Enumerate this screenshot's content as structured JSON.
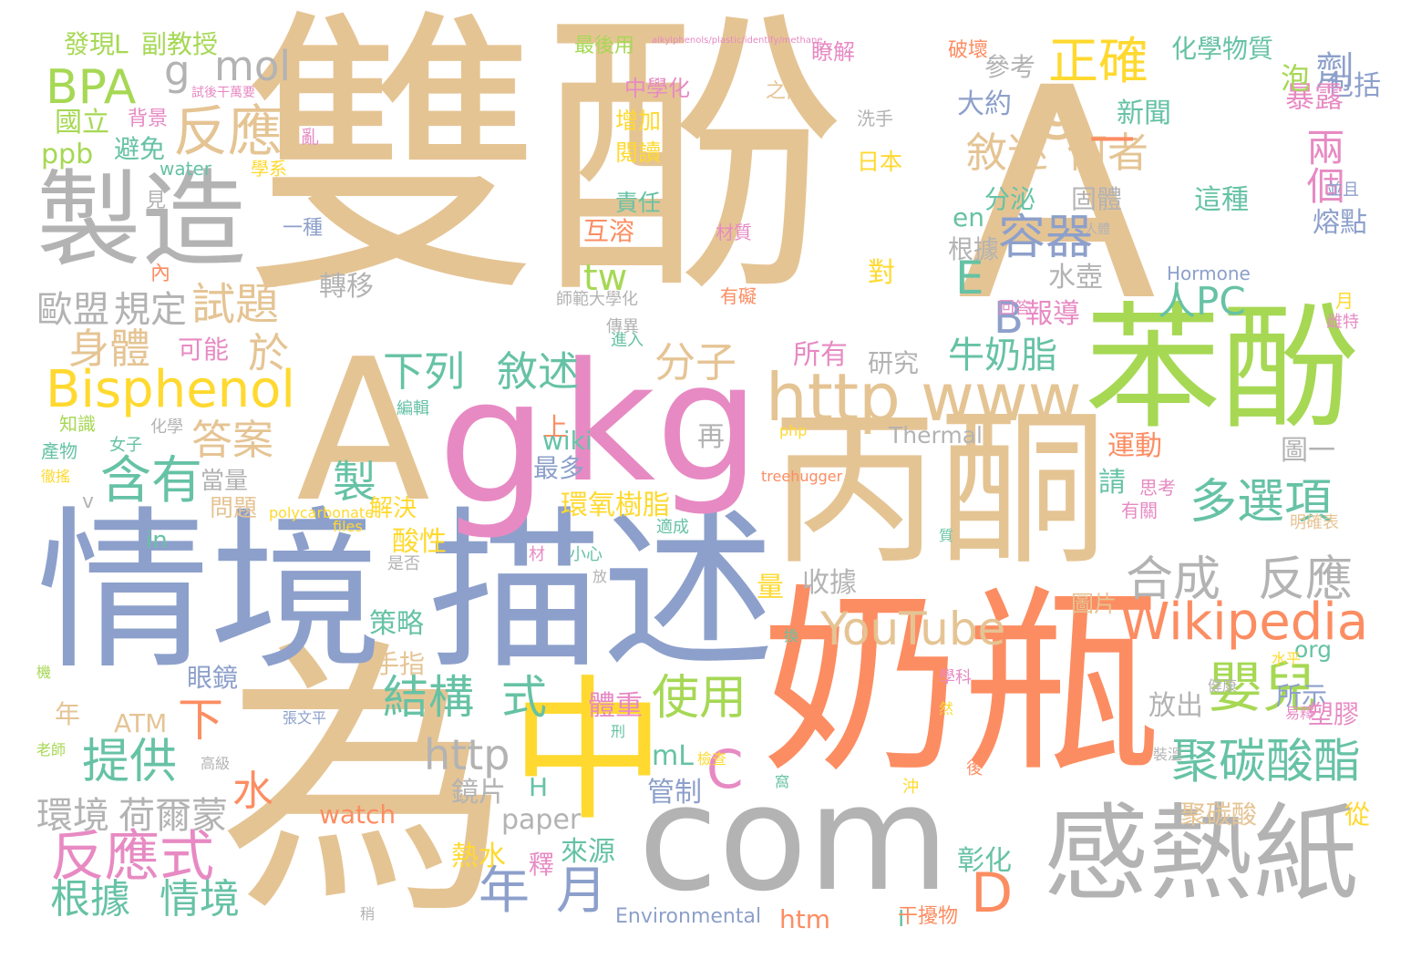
{
  "palette": {
    "tan": "#e5c494",
    "orange": "#fc8d62",
    "blue": "#8da0cb",
    "pink": "#e78ac3",
    "green": "#a6d854",
    "yellow": "#ffd92f",
    "teal": "#66c2a5",
    "gray": "#b3b3b3"
  },
  "words": [
    {
      "text": "雙酚",
      "color": "tan"
    },
    {
      "text": "A",
      "color": "tan"
    },
    {
      "text": "為",
      "color": "tan"
    },
    {
      "text": "奶瓶",
      "color": "orange"
    },
    {
      "text": "情境",
      "color": "blue"
    },
    {
      "text": "描述",
      "color": "blue"
    },
    {
      "text": "丙酮",
      "color": "tan"
    },
    {
      "text": "苯酚",
      "color": "green"
    },
    {
      "text": "A",
      "color": "tan"
    },
    {
      "text": "g",
      "color": "pink"
    },
    {
      "text": "kg",
      "color": "pink"
    },
    {
      "text": "中",
      "color": "yellow"
    },
    {
      "text": "com",
      "color": "gray"
    },
    {
      "text": "感熱紙",
      "color": "gray"
    },
    {
      "text": "製造",
      "color": "gray"
    },
    {
      "text": "http",
      "color": "tan"
    },
    {
      "text": "www",
      "color": "tan"
    },
    {
      "text": "Bisphenol",
      "color": "yellow"
    },
    {
      "text": "Wikipedia",
      "color": "orange"
    },
    {
      "text": "YouTube",
      "color": "tan"
    },
    {
      "text": "BPA",
      "color": "green"
    },
    {
      "text": "反應",
      "color": "tan"
    },
    {
      "text": "g",
      "color": "gray"
    },
    {
      "text": "mol",
      "color": "gray"
    },
    {
      "text": "正確",
      "color": "yellow"
    },
    {
      "text": "劑",
      "color": "blue"
    },
    {
      "text": "g",
      "color": "tan"
    },
    {
      "text": "敘述",
      "color": "tan"
    },
    {
      "text": "何者",
      "color": "tan"
    },
    {
      "text": "兩個",
      "color": "pink"
    },
    {
      "text": "容器",
      "color": "blue"
    },
    {
      "text": "E",
      "color": "teal"
    },
    {
      "text": "B",
      "color": "blue"
    },
    {
      "text": "試題",
      "color": "tan"
    },
    {
      "text": "多選項",
      "color": "teal"
    },
    {
      "text": "合成",
      "color": "gray"
    },
    {
      "text": "反應",
      "color": "gray"
    },
    {
      "text": "嬰兒",
      "color": "green"
    },
    {
      "text": "聚碳酸酯",
      "color": "teal"
    },
    {
      "text": "使用",
      "color": "green"
    },
    {
      "text": "結構",
      "color": "teal"
    },
    {
      "text": "式",
      "color": "teal"
    },
    {
      "text": "提供",
      "color": "teal"
    },
    {
      "text": "反應式",
      "color": "pink"
    },
    {
      "text": "根據",
      "color": "teal"
    },
    {
      "text": "情境",
      "color": "teal"
    },
    {
      "text": "年",
      "color": "blue"
    },
    {
      "text": "月",
      "color": "blue"
    },
    {
      "text": "含有",
      "color": "teal"
    },
    {
      "text": "下列",
      "color": "teal"
    },
    {
      "text": "敘述",
      "color": "teal"
    },
    {
      "text": "分子",
      "color": "tan"
    },
    {
      "text": "牛奶",
      "color": "teal"
    },
    {
      "text": "脂",
      "color": "teal"
    },
    {
      "text": "答案",
      "color": "tan"
    },
    {
      "text": "身體",
      "color": "tan"
    },
    {
      "text": "於",
      "color": "tan"
    },
    {
      "text": "C",
      "color": "pink"
    },
    {
      "text": "D",
      "color": "orange"
    },
    {
      "text": "下",
      "color": "orange"
    },
    {
      "text": "http",
      "color": "gray"
    },
    {
      "text": "水",
      "color": "orange"
    },
    {
      "text": "環境",
      "color": "gray"
    },
    {
      "text": "荷爾蒙",
      "color": "gray"
    },
    {
      "text": "歐盟",
      "color": "gray"
    },
    {
      "text": "規定",
      "color": "gray"
    },
    {
      "text": "發現",
      "color": "green"
    },
    {
      "text": "L",
      "color": "green"
    },
    {
      "text": "副教授",
      "color": "green"
    },
    {
      "text": "國立",
      "color": "green"
    },
    {
      "text": "ppb",
      "color": "green"
    },
    {
      "text": "避免",
      "color": "teal"
    },
    {
      "text": "製",
      "color": "teal"
    },
    {
      "text": "tw",
      "color": "green"
    },
    {
      "text": "人PC",
      "color": "teal"
    },
    {
      "text": "化學物質",
      "color": "teal"
    },
    {
      "text": "參考",
      "color": "gray"
    },
    {
      "text": "大約",
      "color": "blue"
    },
    {
      "text": "新聞",
      "color": "teal"
    },
    {
      "text": "包括",
      "color": "blue"
    },
    {
      "text": "暴露",
      "color": "pink"
    },
    {
      "text": "泡",
      "color": "green"
    },
    {
      "text": "一",
      "color": "orange"
    },
    {
      "text": "熔點",
      "color": "blue"
    },
    {
      "text": "這種",
      "color": "teal"
    },
    {
      "text": "分泌",
      "color": "teal"
    },
    {
      "text": "固體",
      "color": "gray"
    },
    {
      "text": "en",
      "color": "teal"
    },
    {
      "text": "根據",
      "color": "gray"
    },
    {
      "text": "水壺",
      "color": "gray"
    },
    {
      "text": "報導",
      "color": "pink"
    },
    {
      "text": "所有",
      "color": "pink"
    },
    {
      "text": "研究",
      "color": "gray"
    },
    {
      "text": "對",
      "color": "yellow"
    },
    {
      "text": "轉移",
      "color": "gray"
    },
    {
      "text": "Thermal",
      "color": "gray"
    },
    {
      "text": "運動",
      "color": "orange"
    },
    {
      "text": "請",
      "color": "teal"
    },
    {
      "text": "圖一",
      "color": "gray"
    },
    {
      "text": "再",
      "color": "gray"
    },
    {
      "text": "上",
      "color": "orange"
    },
    {
      "text": "wiki",
      "color": "teal"
    },
    {
      "text": "最多",
      "color": "blue"
    },
    {
      "text": "環氧樹脂",
      "color": "yellow"
    },
    {
      "text": "酸性",
      "color": "yellow"
    },
    {
      "text": "策略",
      "color": "teal"
    },
    {
      "text": "收據",
      "color": "gray"
    },
    {
      "text": "量",
      "color": "yellow"
    },
    {
      "text": "圖片",
      "color": "tan"
    },
    {
      "text": "手指",
      "color": "tan"
    },
    {
      "text": "眼鏡",
      "color": "blue"
    },
    {
      "text": "放出",
      "color": "gray"
    },
    {
      "text": "所示",
      "color": "blue"
    },
    {
      "text": "塑膠",
      "color": "pink"
    },
    {
      "text": "org",
      "color": "teal"
    },
    {
      "text": "體重",
      "color": "pink"
    },
    {
      "text": "管制",
      "color": "blue"
    },
    {
      "text": "mL",
      "color": "teal"
    },
    {
      "text": "H",
      "color": "teal"
    },
    {
      "text": "鏡片",
      "color": "gray"
    },
    {
      "text": "paper",
      "color": "gray"
    },
    {
      "text": "watch",
      "color": "orange"
    },
    {
      "text": "ATM",
      "color": "tan"
    },
    {
      "text": "年",
      "color": "tan"
    },
    {
      "text": "來源",
      "color": "teal"
    },
    {
      "text": "熱水",
      "color": "yellow"
    },
    {
      "text": "釋",
      "color": "pink"
    },
    {
      "text": "彰化",
      "color": "teal"
    },
    {
      "text": "聚碳酸",
      "color": "tan"
    },
    {
      "text": "從",
      "color": "yellow"
    },
    {
      "text": "Environmental",
      "color": "blue"
    },
    {
      "text": "htm",
      "color": "orange"
    },
    {
      "text": "I",
      "color": "teal"
    },
    {
      "text": "干擾物",
      "color": "orange"
    },
    {
      "text": "當量",
      "color": "gray"
    },
    {
      "text": "問題",
      "color": "tan"
    },
    {
      "text": "解決",
      "color": "yellow"
    },
    {
      "text": "in",
      "color": "teal"
    },
    {
      "text": "可能",
      "color": "pink"
    },
    {
      "text": "互溶",
      "color": "orange"
    },
    {
      "text": "責任",
      "color": "teal"
    },
    {
      "text": "閱讀",
      "color": "yellow"
    },
    {
      "text": "增加",
      "color": "yellow"
    },
    {
      "text": "中學化",
      "color": "pink"
    },
    {
      "text": "最後用",
      "color": "green"
    },
    {
      "text": "日本",
      "color": "yellow"
    },
    {
      "text": "破壞",
      "color": "orange"
    },
    {
      "text": "瞭解",
      "color": "pink"
    },
    {
      "text": "洗手",
      "color": "gray"
    },
    {
      "text": "之前",
      "color": "tan"
    },
    {
      "text": "背景",
      "color": "pink"
    },
    {
      "text": "亂",
      "color": "pink"
    },
    {
      "text": "學系",
      "color": "yellow"
    },
    {
      "text": "water",
      "color": "teal"
    },
    {
      "text": "見",
      "color": "gray"
    },
    {
      "text": "內",
      "color": "orange"
    },
    {
      "text": "一種",
      "color": "blue"
    },
    {
      "text": "Hormone",
      "color": "blue"
    },
    {
      "text": "有礙",
      "color": "orange"
    },
    {
      "text": "材質",
      "color": "pink"
    },
    {
      "text": "人體",
      "color": "gray"
    },
    {
      "text": "並且",
      "color": "blue"
    },
    {
      "text": "月",
      "color": "yellow"
    },
    {
      "text": "雌特",
      "color": "pink"
    },
    {
      "text": "師範大學化",
      "color": "gray"
    },
    {
      "text": "傳異",
      "color": "gray"
    },
    {
      "text": "進入",
      "color": "teal"
    },
    {
      "text": "回答",
      "color": "pink"
    },
    {
      "text": "知識",
      "color": "green"
    },
    {
      "text": "化學",
      "color": "gray"
    },
    {
      "text": "產物",
      "color": "teal"
    },
    {
      "text": "女子",
      "color": "teal"
    },
    {
      "text": "徹搖",
      "color": "yellow"
    },
    {
      "text": "v",
      "color": "gray"
    },
    {
      "text": "編輯",
      "color": "teal"
    },
    {
      "text": "php",
      "color": "yellow"
    },
    {
      "text": "treehugger",
      "color": "orange"
    },
    {
      "text": "思考",
      "color": "pink"
    },
    {
      "text": "有關",
      "color": "pink"
    },
    {
      "text": "明確表",
      "color": "tan"
    },
    {
      "text": "polycarbonate",
      "color": "yellow"
    },
    {
      "text": "files",
      "color": "yellow"
    },
    {
      "text": "材",
      "color": "pink"
    },
    {
      "text": "小心",
      "color": "teal"
    },
    {
      "text": "適成",
      "color": "teal"
    },
    {
      "text": "是否",
      "color": "gray"
    },
    {
      "text": "質",
      "color": "teal"
    },
    {
      "text": "放",
      "color": "gray"
    },
    {
      "text": "換",
      "color": "teal"
    },
    {
      "text": "水平",
      "color": "yellow"
    },
    {
      "text": "健康",
      "color": "gray"
    },
    {
      "text": "易釋",
      "color": "pink"
    },
    {
      "text": "學科",
      "color": "pink"
    },
    {
      "text": "張文平",
      "color": "blue"
    },
    {
      "text": "高級",
      "color": "gray"
    },
    {
      "text": "老師",
      "color": "green"
    },
    {
      "text": "機",
      "color": "green"
    },
    {
      "text": "裝溫",
      "color": "gray"
    },
    {
      "text": "檢查",
      "color": "yellow"
    },
    {
      "text": "窩",
      "color": "teal"
    },
    {
      "text": "然",
      "color": "yellow"
    },
    {
      "text": "沖",
      "color": "yellow"
    },
    {
      "text": "後",
      "color": "orange"
    },
    {
      "text": "刑",
      "color": "teal"
    },
    {
      "text": "稍",
      "color": "gray"
    },
    {
      "text": "試後干萬要",
      "color": "pink"
    },
    {
      "text": "alkylphenols/plastic/identify/methane",
      "color": "pink"
    }
  ]
}
